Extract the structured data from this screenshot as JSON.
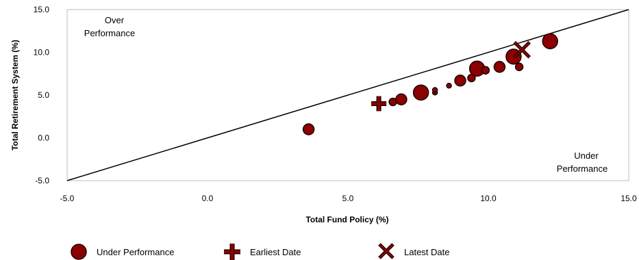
{
  "chart_data": {
    "type": "scatter",
    "xlabel": "Total Fund Policy (%)",
    "ylabel": "Total Retirement System (%)",
    "xlim": [
      -5.0,
      15.0
    ],
    "ylim": [
      -5.0,
      15.0
    ],
    "x_ticks": [
      "-5.0",
      "0.0",
      "5.0",
      "10.0",
      "15.0"
    ],
    "y_ticks": [
      "-5.0",
      "0.0",
      "5.0",
      "10.0",
      "15.0"
    ],
    "grid": false,
    "reference_line": {
      "from": [
        -5.0,
        -5.0
      ],
      "to": [
        15.0,
        15.0
      ]
    },
    "annotations": {
      "over_line1": "Over",
      "over_line2": "Performance",
      "under_line1": "Under",
      "under_line2": "Performance"
    },
    "legend_position": "bottom",
    "colors": {
      "marker_fill": "#8b0000",
      "marker_stroke": "#1a0000",
      "line": "#000000",
      "frame": "#bdbdbd"
    },
    "series": [
      {
        "name": "Under Performance",
        "marker": "circle",
        "points": [
          {
            "x": 3.6,
            "y": 1.0,
            "size": "medium"
          },
          {
            "x": 6.6,
            "y": 4.2,
            "size": "small"
          },
          {
            "x": 6.9,
            "y": 4.5,
            "size": "medium"
          },
          {
            "x": 7.6,
            "y": 5.3,
            "size": "large"
          },
          {
            "x": 8.1,
            "y": 5.3,
            "size": "tiny"
          },
          {
            "x": 8.1,
            "y": 5.6,
            "size": "tiny"
          },
          {
            "x": 8.6,
            "y": 6.1,
            "size": "tiny"
          },
          {
            "x": 9.0,
            "y": 6.7,
            "size": "medium"
          },
          {
            "x": 9.4,
            "y": 7.0,
            "size": "small"
          },
          {
            "x": 9.6,
            "y": 8.1,
            "size": "large"
          },
          {
            "x": 9.9,
            "y": 7.9,
            "size": "small"
          },
          {
            "x": 10.4,
            "y": 8.3,
            "size": "medium"
          },
          {
            "x": 10.9,
            "y": 9.5,
            "size": "large"
          },
          {
            "x": 11.1,
            "y": 8.3,
            "size": "small"
          },
          {
            "x": 12.2,
            "y": 11.3,
            "size": "large"
          }
        ]
      },
      {
        "name": "Earliest Date",
        "marker": "plus",
        "points": [
          {
            "x": 6.1,
            "y": 4.0
          }
        ]
      },
      {
        "name": "Latest Date",
        "marker": "cross",
        "points": [
          {
            "x": 11.2,
            "y": 10.3
          }
        ]
      }
    ]
  }
}
